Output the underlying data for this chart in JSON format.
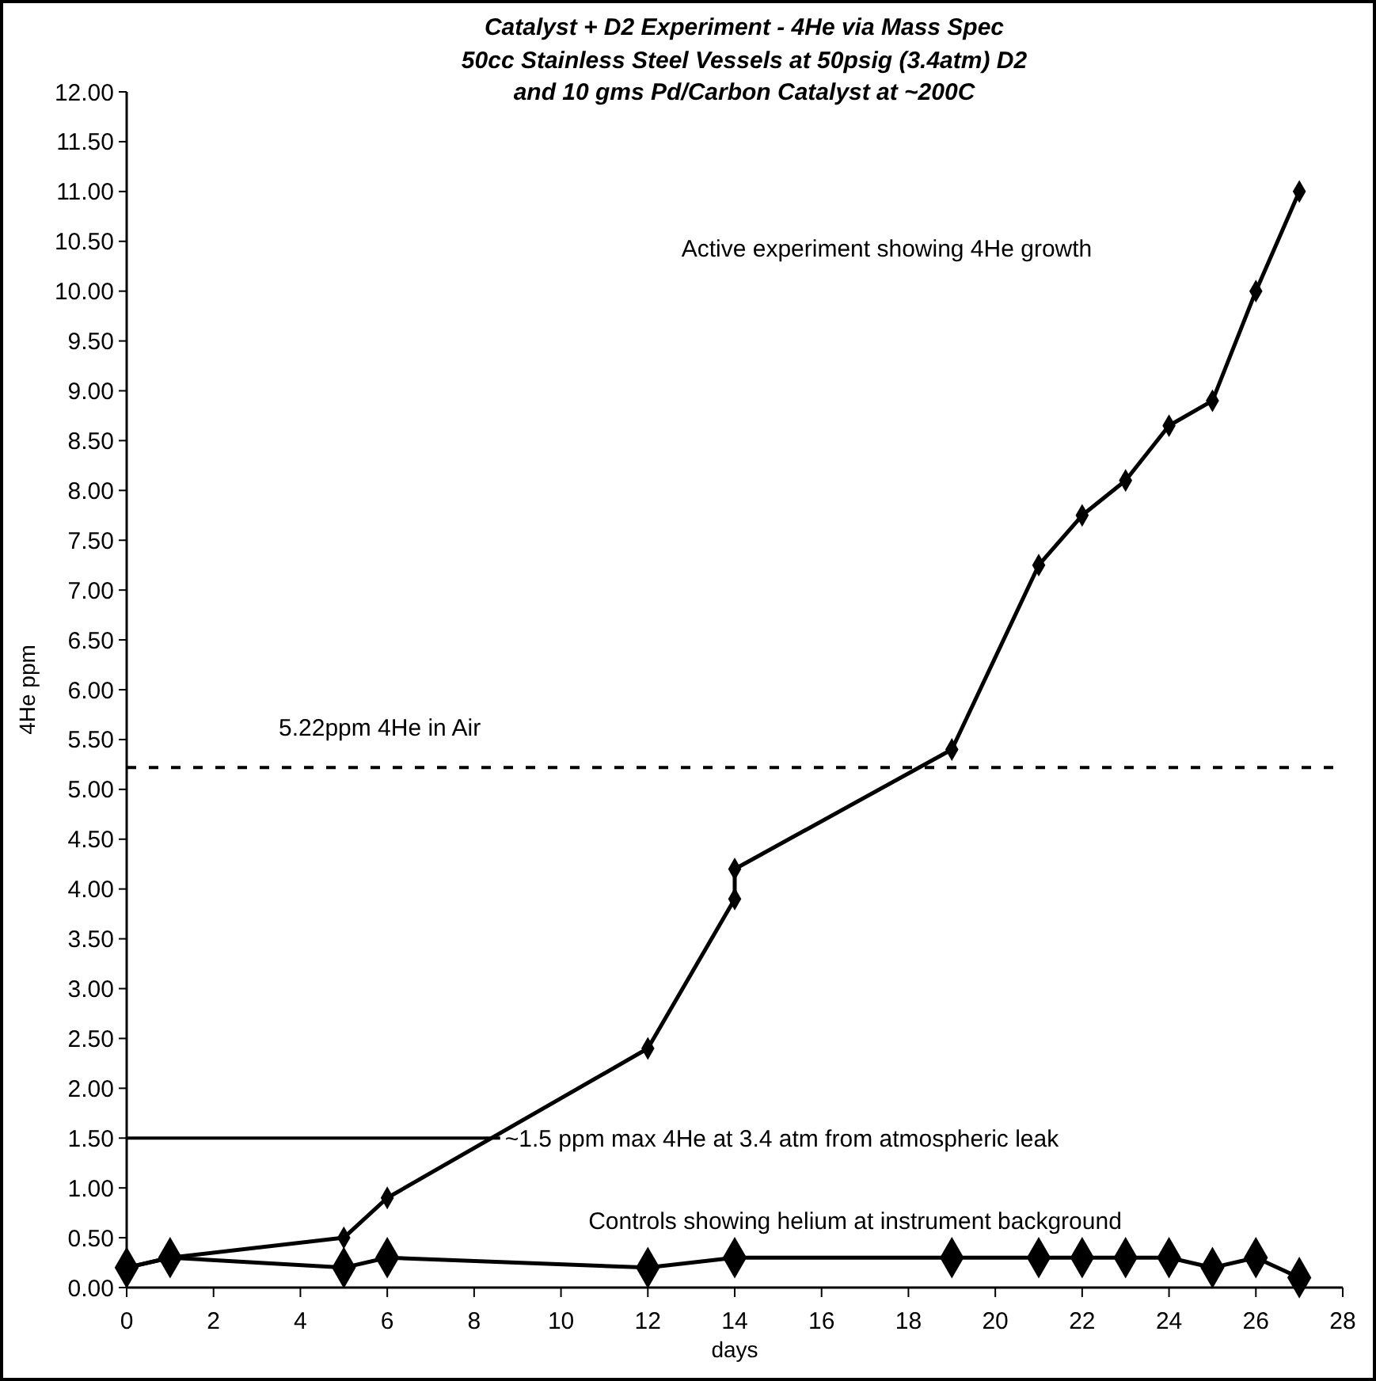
{
  "chart_data": {
    "type": "line",
    "title": "Catalyst + D2 Experiment - 4He via Mass Spec",
    "subtitle": "50cc Stainless Steel Vessels at 50psig (3.4atm) D2\nand 10 gms Pd/Carbon Catalyst at ~200C",
    "xlabel": "days",
    "ylabel": "4He ppm",
    "series": [
      {
        "color": "#000000",
        "x": [
          0,
          1,
          5,
          6,
          12,
          14,
          14,
          19,
          21,
          22,
          23,
          24,
          25,
          26,
          27
        ],
        "values": [
          0.2,
          0.3,
          0.5,
          0.9,
          2.4,
          3.9,
          4.2,
          5.4,
          7.25,
          7.75,
          8.1,
          8.65,
          8.9,
          10.0,
          11.0
        ]
      },
      {
        "color": "#000000",
        "x": [
          0,
          1,
          5,
          6,
          12,
          14,
          19,
          21,
          22,
          23,
          24,
          25,
          26,
          27
        ],
        "values": [
          0.2,
          0.3,
          0.2,
          0.3,
          0.2,
          0.3,
          0.3,
          0.3,
          0.3,
          0.3,
          0.3,
          0.2,
          0.3,
          0.1
        ]
      }
    ],
    "xlim": [
      0,
      28
    ],
    "xticks": [
      0,
      2,
      4,
      6,
      8,
      10,
      12,
      14,
      16,
      18,
      20,
      22,
      24,
      26,
      28
    ],
    "ylim": [
      0,
      12
    ],
    "yticks": [
      {
        "value": 0,
        "label": "0.00"
      },
      {
        "value": 0.5,
        "label": "0.50"
      },
      {
        "value": 1,
        "label": "1.00"
      },
      {
        "value": 1.5,
        "label": "1.50"
      },
      {
        "value": 2,
        "label": "2.00"
      },
      {
        "value": 2.5,
        "label": "2.50"
      },
      {
        "value": 3,
        "label": "3.00"
      },
      {
        "value": 3.5,
        "label": "3.50"
      },
      {
        "value": 4,
        "label": "4.00"
      },
      {
        "value": 4.5,
        "label": "4.50"
      },
      {
        "value": 5,
        "label": "5.00"
      },
      {
        "value": 5.5,
        "label": "5.50"
      },
      {
        "value": 6,
        "label": "6.00"
      },
      {
        "value": 6.5,
        "label": "6.50"
      },
      {
        "value": 7,
        "label": "7.00"
      },
      {
        "value": 7.5,
        "label": "7.50"
      },
      {
        "value": 8,
        "label": "8.00"
      },
      {
        "value": 8.5,
        "label": "8.50"
      },
      {
        "value": 9,
        "label": "9.00"
      },
      {
        "value": 9.5,
        "label": "9.50"
      },
      {
        "value": 10,
        "label": "10.00"
      },
      {
        "value": 10.5,
        "label": "10.50"
      },
      {
        "value": 11,
        "label": "11.00"
      },
      {
        "value": 11.5,
        "label": "11.50"
      },
      {
        "value": 12,
        "label": "12.00"
      }
    ],
    "ref_lines": [
      {
        "axis": "y",
        "value": 5.22,
        "label": "5.22ppm 4He in Air",
        "line_style": "dashed",
        "color": "#000000"
      },
      {
        "axis": "y",
        "value": 1.5,
        "label": "~1.5 ppm max 4He at 3.4 atm from atmospheric leak",
        "line_style": "solid",
        "color": "#000000"
      }
    ],
    "annotations": [
      "Active experiment showing 4He growth",
      "Controls showing helium at instrument background"
    ],
    "marker": "diamond",
    "line_style": "solid",
    "grid": false
  }
}
